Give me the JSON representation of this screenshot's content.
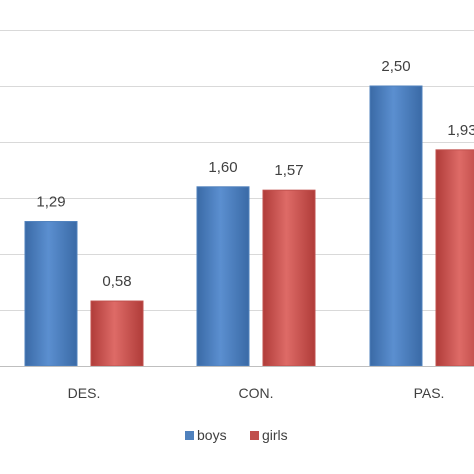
{
  "chart_data": {
    "type": "bar",
    "categories": [
      "DES.",
      "CON.",
      "PAS."
    ],
    "series": [
      {
        "name": "boys",
        "values": [
          1.29,
          1.6,
          2.5
        ],
        "labels": [
          "1,29",
          "1,60",
          "2,50"
        ],
        "color": "#4f81bd"
      },
      {
        "name": "girls",
        "values": [
          0.58,
          1.57,
          1.93
        ],
        "labels": [
          "0,58",
          "1,57",
          "1,93"
        ],
        "color": "#c0504d"
      }
    ],
    "ylim": [
      0,
      3.0
    ],
    "grid": true,
    "legend": "bottom"
  }
}
